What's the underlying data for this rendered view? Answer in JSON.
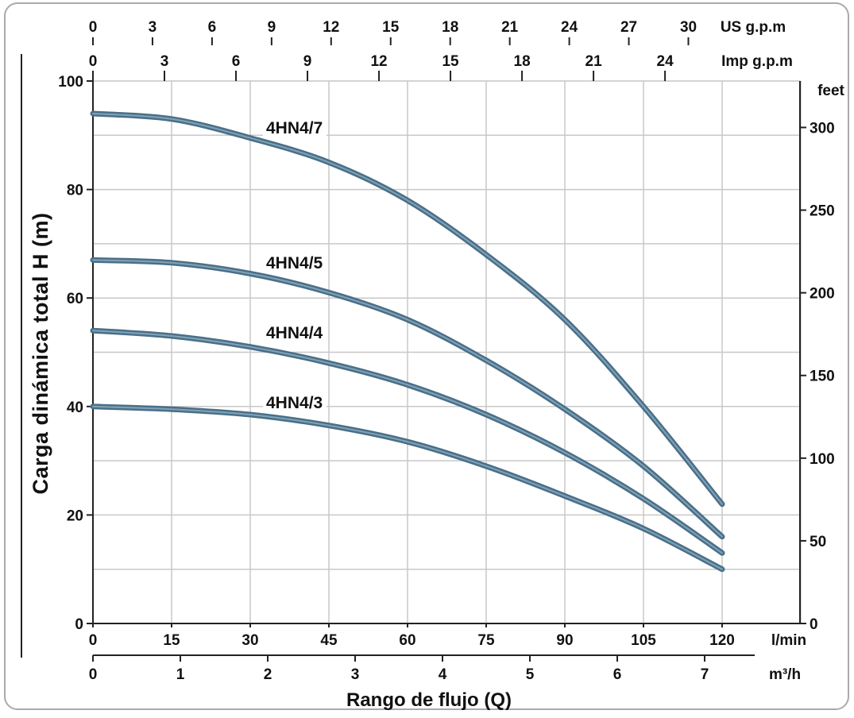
{
  "chart_data": {
    "type": "line",
    "title": "",
    "xlabel": "Rango de flujo (Q)",
    "ylabel": "Carga dinámica total H (m)",
    "xlim": [
      0,
      120
    ],
    "ylim": [
      0,
      100
    ],
    "grid": true,
    "legend": "none",
    "x_ticks": [
      "0",
      "15",
      "30",
      "45",
      "60",
      "75",
      "90",
      "105",
      "120"
    ],
    "x_unit": "l/min",
    "y_ticks": [
      "0",
      "20",
      "40",
      "60",
      "80",
      "100"
    ],
    "secondary_axes": {
      "bottom_m3h": {
        "unit": "m³/h",
        "ticks": [
          0,
          1,
          2,
          3,
          4,
          5,
          6,
          7
        ],
        "labels": [
          "0",
          "1",
          "2",
          "3",
          "4",
          "5",
          "6",
          "7"
        ]
      },
      "top_us_gpm": {
        "unit": "US g.p.m",
        "ticks": [
          0,
          3,
          6,
          9,
          12,
          15,
          18,
          21,
          24,
          27,
          30
        ],
        "labels": [
          "0",
          "3",
          "6",
          "9",
          "12",
          "15",
          "18",
          "21",
          "24",
          "27",
          "30"
        ]
      },
      "top_imp_gpm": {
        "unit": "Imp g.p.m",
        "ticks": [
          0,
          3,
          6,
          9,
          12,
          15,
          18,
          21,
          24
        ],
        "labels": [
          "0",
          "3",
          "6",
          "9",
          "12",
          "15",
          "18",
          "21",
          "24"
        ]
      },
      "right_feet": {
        "unit": "feet",
        "ticks": [
          0,
          50,
          100,
          150,
          200,
          250,
          300
        ],
        "labels": [
          "0",
          "50",
          "100",
          "150",
          "200",
          "250",
          "300"
        ]
      }
    },
    "x": [
      0,
      15,
      30,
      45,
      60,
      75,
      90,
      105,
      120
    ],
    "series": [
      {
        "name": "4HN4/7",
        "values": [
          94,
          93,
          89.5,
          85,
          78,
          68,
          56,
          40,
          22
        ]
      },
      {
        "name": "4HN4/5",
        "values": [
          67,
          66.5,
          64.5,
          61,
          56,
          48.5,
          39.5,
          29,
          16
        ]
      },
      {
        "name": "4HN4/4",
        "values": [
          54,
          53,
          51,
          48,
          44,
          38.5,
          31.5,
          23,
          13
        ]
      },
      {
        "name": "4HN4/3",
        "values": [
          40,
          39.5,
          38.5,
          36.5,
          33.5,
          29,
          23.5,
          17.5,
          10
        ]
      }
    ]
  },
  "colors": {
    "curve": "#4a6f88",
    "curve_highlight": "#8fb0c4",
    "grid": "#c8c8c8",
    "axis": "#222222",
    "frame": "#aaaaaa"
  }
}
